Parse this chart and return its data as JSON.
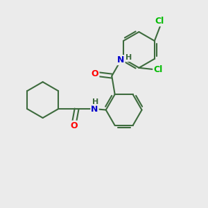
{
  "bg_color": "#ebebeb",
  "bond_color": "#3d6b3d",
  "bond_width": 1.5,
  "atom_colors": {
    "O": "#ff0000",
    "N": "#0000cc",
    "Cl": "#00bb00",
    "C": "#3d6b3d",
    "H": "#3d6b3d"
  },
  "font_size_atom": 9,
  "xlim": [
    0,
    10
  ],
  "ylim": [
    0,
    10
  ]
}
